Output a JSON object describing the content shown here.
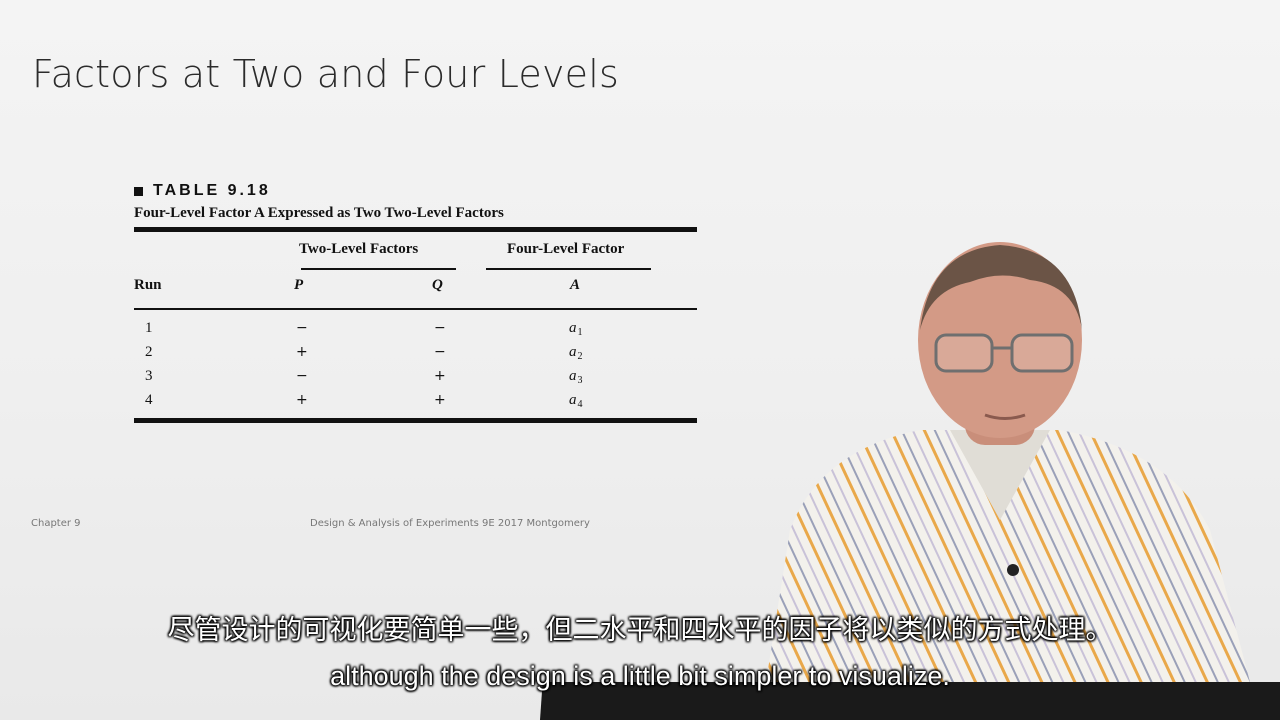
{
  "slide": {
    "title": "Factors at Two and Four Levels",
    "footer_left": "Chapter 9",
    "footer_center": "Design & Analysis of Experiments 9E 2017 Montgomery"
  },
  "table": {
    "label": "TABLE 9.18",
    "caption": "Four-Level Factor A Expressed as Two Two-Level Factors",
    "group_headers": [
      "Two-Level Factors",
      "Four-Level Factor"
    ],
    "columns": [
      "Run",
      "P",
      "Q",
      "A"
    ],
    "rows": [
      {
        "run": "1",
        "p": "−",
        "q": "−",
        "a": "a",
        "a_sub": "1"
      },
      {
        "run": "2",
        "p": "+",
        "q": "−",
        "a": "a",
        "a_sub": "2"
      },
      {
        "run": "3",
        "p": "−",
        "q": "+",
        "a": "a",
        "a_sub": "3"
      },
      {
        "run": "4",
        "p": "+",
        "q": "+",
        "a": "a",
        "a_sub": "4"
      }
    ]
  },
  "subtitles": {
    "chinese": "尽管设计的可视化要简单一些，但二水平和四水平的因子将以类似的方式处理。",
    "english": "although the design is a little bit simpler to visualize."
  }
}
